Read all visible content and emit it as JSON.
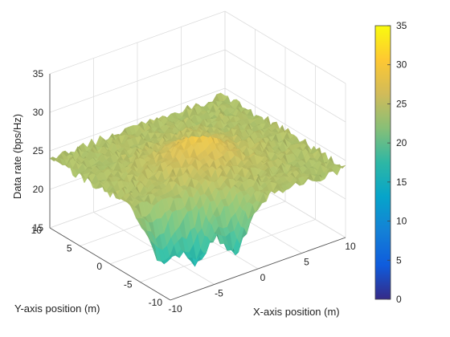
{
  "chart_data": {
    "type": "surface",
    "title": "",
    "xlabel": "X-axis position (m)",
    "ylabel": "Y-axis position (m)",
    "zlabel": "Data rate (bps/Hz)",
    "xlim": [
      -10,
      10
    ],
    "ylim": [
      -10,
      10
    ],
    "zlim": [
      15,
      35
    ],
    "x_ticks": [
      -10,
      -5,
      0,
      5,
      10
    ],
    "y_ticks": [
      -10,
      -5,
      0,
      5,
      10
    ],
    "z_ticks": [
      15,
      20,
      25,
      30,
      35
    ],
    "grid": true,
    "colormap": "parula",
    "colorbar": {
      "location": "right",
      "range": [
        0,
        35
      ],
      "ticks": [
        0,
        5,
        10,
        15,
        20,
        25,
        30,
        35
      ]
    },
    "surface_summary": {
      "peak": {
        "x": 0,
        "y": 0,
        "z": 30.5
      },
      "edge_level_approx": 24,
      "dips": [
        {
          "x": -8,
          "y": -6,
          "z": 17
        },
        {
          "x": -5,
          "y": -7,
          "z": 16.5
        },
        {
          "x": -2,
          "y": -9,
          "z": 17.5
        }
      ]
    }
  },
  "colors": {
    "parula": [
      "#352a87",
      "#0f5cdd",
      "#1481d6",
      "#06a4ca",
      "#2eb7a4",
      "#87bf77",
      "#d1bb59",
      "#fec832",
      "#f9fb0e"
    ]
  }
}
